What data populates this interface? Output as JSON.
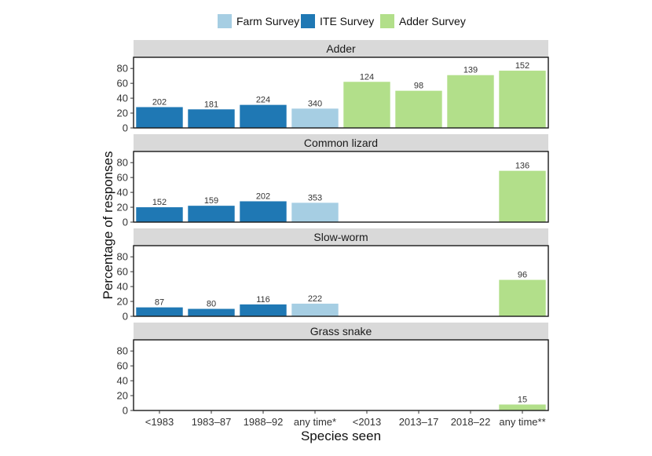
{
  "chart_data": {
    "type": "bar",
    "xlabel": "Species seen",
    "ylabel": "Percentage of responses",
    "ylim": [
      0,
      95
    ],
    "yticks": [
      0,
      20,
      40,
      60,
      80
    ],
    "categories": [
      "<1983",
      "1983–87",
      "1988–92",
      "any time*",
      "<2013",
      "2013–17",
      "2018–22",
      "any time**"
    ],
    "category_survey": [
      "ITE Survey",
      "ITE Survey",
      "ITE Survey",
      "Farm Survey",
      "Adder Survey",
      "Adder Survey",
      "Adder Survey",
      "Adder Survey"
    ],
    "legend": {
      "position": "top",
      "entries": [
        {
          "name": "Farm Survey",
          "color": "#a6cee3"
        },
        {
          "name": "ITE Survey",
          "color": "#1f78b4"
        },
        {
          "name": "Adder Survey",
          "color": "#b2df8a"
        }
      ]
    },
    "panels": [
      {
        "title": "Adder",
        "values": [
          28,
          25,
          31,
          26,
          62,
          50,
          71,
          77
        ],
        "labels": [
          "202",
          "181",
          "224",
          "340",
          "124",
          "98",
          "139",
          "152"
        ]
      },
      {
        "title": "Common lizard",
        "values": [
          20,
          22,
          28,
          26,
          null,
          null,
          null,
          69
        ],
        "labels": [
          "152",
          "159",
          "202",
          "353",
          "",
          "",
          "",
          "136"
        ]
      },
      {
        "title": "Slow-worm",
        "values": [
          12,
          10,
          16,
          17,
          null,
          null,
          null,
          49
        ],
        "labels": [
          "87",
          "80",
          "116",
          "222",
          "",
          "",
          "",
          "96"
        ]
      },
      {
        "title": "Grass snake",
        "values": [
          null,
          null,
          null,
          null,
          null,
          null,
          null,
          8
        ],
        "labels": [
          "",
          "",
          "",
          "",
          "",
          "",
          "",
          "15"
        ]
      }
    ],
    "grid": false
  }
}
